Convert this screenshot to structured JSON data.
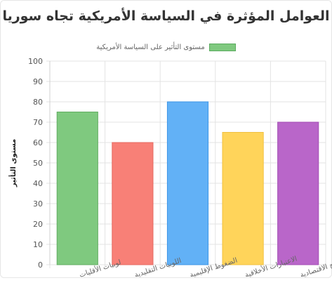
{
  "chart_data": {
    "type": "bar",
    "title": "العوامل المؤثرة في السياسة الأمريكية تجاه سوريا",
    "categories": [
      "لوبيات الأقليات",
      "اللوبيات التقليدية",
      "الضغوط الإقليمية",
      "الاعتبارات الأخلاقية",
      "المصالح الاقتصادية"
    ],
    "series": [
      {
        "name": "مستوى التأثير على السياسة الأمريكية",
        "values": [
          75,
          60,
          80,
          65,
          70
        ]
      }
    ],
    "colors": [
      "#7fc97f",
      "#f88077",
      "#62b1f6",
      "#ffd45a",
      "#b966c9"
    ],
    "border_colors": [
      "#62ad62",
      "#e66a61",
      "#3e95e6",
      "#f0c040",
      "#a44fb5"
    ],
    "xlabel": "",
    "ylabel": "مستوى التأثير",
    "ylim": [
      0,
      100
    ],
    "yticks": [
      0,
      10,
      20,
      30,
      40,
      50,
      60,
      70,
      80,
      90,
      100
    ],
    "grid": true,
    "legend_position": "top"
  }
}
